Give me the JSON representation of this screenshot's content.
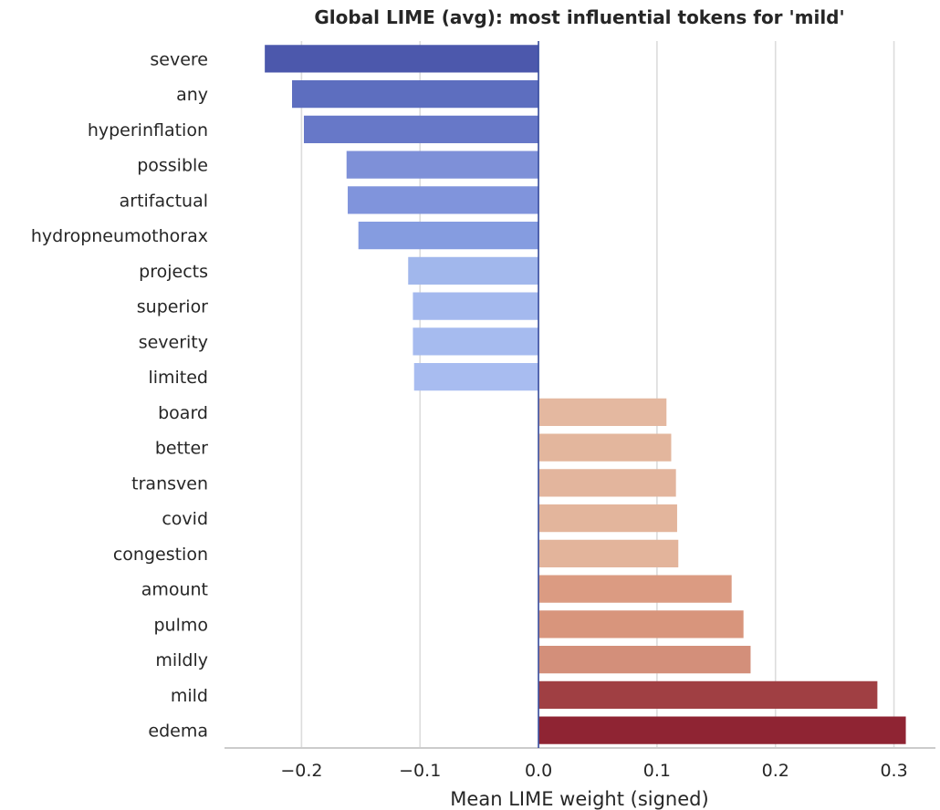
{
  "chart_data": {
    "type": "bar",
    "orientation": "horizontal",
    "title": "Global LIME (avg): most influential tokens for 'mild'",
    "xlabel": "Mean LIME weight (signed)",
    "ylabel": "",
    "xlim": [
      -0.265,
      0.335
    ],
    "grid": true,
    "xticks": [
      -0.2,
      -0.1,
      0.0,
      0.1,
      0.2,
      0.3
    ],
    "xtick_labels": [
      "−0.2",
      "−0.1",
      "0.0",
      "0.1",
      "0.2",
      "0.3"
    ],
    "categories": [
      "severe",
      "any",
      "hyperinflation",
      "possible",
      "artifactual",
      "hydropneumothorax",
      "projects",
      "superior",
      "severity",
      "limited",
      "board",
      "better",
      "transven",
      "covid",
      "congestion",
      "amount",
      "pulmo",
      "mildly",
      "mild",
      "edema"
    ],
    "values": [
      -0.231,
      -0.208,
      -0.198,
      -0.162,
      -0.161,
      -0.152,
      -0.11,
      -0.106,
      -0.106,
      -0.105,
      0.108,
      0.112,
      0.116,
      0.117,
      0.118,
      0.163,
      0.173,
      0.179,
      0.286,
      0.31
    ],
    "colors": [
      "#4c58ac",
      "#5d6ebf",
      "#6778c8",
      "#7e90d8",
      "#8094dc",
      "#859ce0",
      "#a1b7ec",
      "#a4b9ee",
      "#a6bbef",
      "#a8bcf0",
      "#e4b8a0",
      "#e3b69d",
      "#e3b59d",
      "#e3b59c",
      "#e3b49b",
      "#db9b82",
      "#d8957c",
      "#d38f7a",
      "#a03f43",
      "#8f2433"
    ]
  }
}
